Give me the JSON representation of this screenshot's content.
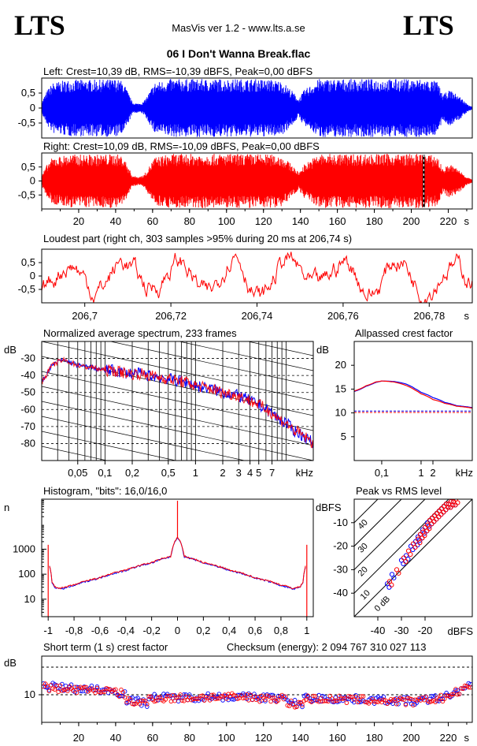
{
  "header": {
    "logo_left": "LTS",
    "logo_right": "LTS",
    "app_title": "MasVis ver 1.2 - www.lts.a.se",
    "file_title": "06 I Don't Wanna Break.flac"
  },
  "chart_data": [
    {
      "id": "left-waveform",
      "type": "area",
      "title": "Left: Crest=10,39 dB, RMS=-10,39 dBFS, Peak=0,00 dBFS",
      "yticks": [
        "0,5",
        "0",
        "-0,5"
      ],
      "ylim": [
        -1,
        1
      ],
      "xlim": [
        0,
        233
      ],
      "color": "#0000ff",
      "envelope_times_s": [
        0,
        3,
        6,
        15,
        24,
        31,
        40,
        44,
        48,
        49,
        52,
        55,
        58,
        61,
        70,
        85,
        100,
        115,
        125,
        130,
        136,
        139,
        142,
        150,
        170,
        190,
        205,
        214,
        217,
        221,
        226,
        230,
        233
      ],
      "envelope_peak": [
        0.2,
        0.6,
        0.85,
        0.95,
        0.95,
        0.95,
        0.97,
        0.9,
        0.35,
        0.2,
        0.15,
        0.2,
        0.5,
        0.85,
        0.97,
        0.97,
        0.97,
        0.97,
        0.95,
        0.9,
        0.55,
        0.3,
        0.6,
        0.97,
        0.97,
        0.97,
        0.97,
        0.9,
        0.45,
        0.6,
        0.4,
        0.15,
        0.05
      ]
    },
    {
      "id": "right-waveform",
      "type": "area",
      "title": "Right: Crest=10,09 dB, RMS=-10,09 dBFS, Peak=0,00 dBFS",
      "yticks": [
        "0,5",
        "0",
        "-0,5"
      ],
      "ylim": [
        -1,
        1
      ],
      "xlim": [
        0,
        233
      ],
      "color": "#ff0000",
      "marker_s": 206.74,
      "x_unit": "s",
      "xticks": [
        20,
        40,
        60,
        80,
        100,
        120,
        140,
        160,
        180,
        200,
        220
      ],
      "envelope_times_s": [
        0,
        3,
        6,
        15,
        24,
        31,
        40,
        44,
        48,
        49,
        52,
        55,
        58,
        61,
        70,
        85,
        100,
        115,
        125,
        130,
        136,
        139,
        142,
        150,
        170,
        190,
        205,
        214,
        217,
        221,
        226,
        230,
        233
      ],
      "envelope_peak": [
        0.2,
        0.6,
        0.85,
        0.95,
        0.95,
        0.95,
        0.97,
        0.9,
        0.35,
        0.2,
        0.15,
        0.2,
        0.5,
        0.85,
        0.97,
        0.97,
        0.97,
        0.97,
        0.95,
        0.9,
        0.55,
        0.3,
        0.6,
        0.97,
        0.97,
        0.97,
        0.97,
        0.9,
        0.45,
        0.6,
        0.4,
        0.15,
        0.05
      ]
    },
    {
      "id": "loudest-part",
      "type": "line",
      "title": "Loudest part (right ch, 303 samples >95% during 20 ms at 206,74 s)",
      "yticks": [
        "0,5",
        "0",
        "-0,5"
      ],
      "ylim": [
        -1,
        1
      ],
      "xlim": [
        206.69,
        206.79
      ],
      "xticks": [
        206.7,
        206.72,
        206.74,
        206.76,
        206.78
      ],
      "xtick_labels": [
        "206,7",
        "206,72",
        "206,74",
        "206,76",
        "206,78"
      ],
      "x_unit": "s",
      "color": "#ff0000"
    },
    {
      "id": "spectrum",
      "type": "line",
      "title": "Normalized average spectrum, 233 frames",
      "ylabel": "dB",
      "ylim": [
        -90,
        -20
      ],
      "yticks": [
        -30,
        -40,
        -50,
        -60,
        -70,
        -80
      ],
      "xlim": [
        0.02,
        20
      ],
      "xticks": [
        0.05,
        0.1,
        0.2,
        0.5,
        1,
        2,
        3,
        4,
        5,
        7
      ],
      "xtick_labels": [
        "0,05",
        "0,1",
        "0,2",
        "0,5",
        "1",
        "2",
        "3",
        "4",
        "5",
        "7"
      ],
      "x_unit": "kHz",
      "series": [
        {
          "color": "#0000ff",
          "x": [
            0.02,
            0.025,
            0.03,
            0.035,
            0.04,
            0.045,
            0.05,
            0.06,
            0.07,
            0.08,
            0.1,
            0.12,
            0.15,
            0.2,
            0.25,
            0.3,
            0.4,
            0.5,
            0.6,
            0.8,
            1,
            1.5,
            2,
            2.5,
            3,
            4,
            5,
            6,
            7,
            8,
            10,
            12,
            15,
            20
          ],
          "y": [
            -44,
            -35,
            -32,
            -31,
            -32,
            -33,
            -34,
            -35,
            -35,
            -36,
            -37,
            -37,
            -38,
            -39,
            -39,
            -40,
            -41,
            -42,
            -43,
            -44,
            -46,
            -48,
            -50,
            -51,
            -52,
            -55,
            -57,
            -60,
            -62,
            -65,
            -68,
            -72,
            -75,
            -80
          ]
        },
        {
          "color": "#ff0000",
          "x": [
            0.02,
            0.025,
            0.03,
            0.035,
            0.04,
            0.045,
            0.05,
            0.06,
            0.07,
            0.08,
            0.1,
            0.12,
            0.15,
            0.2,
            0.25,
            0.3,
            0.4,
            0.5,
            0.6,
            0.8,
            1,
            1.5,
            2,
            2.5,
            3,
            4,
            5,
            6,
            7,
            8,
            10,
            12,
            15,
            20
          ],
          "y": [
            -44,
            -35,
            -32,
            -31,
            -32,
            -33,
            -34,
            -35,
            -35,
            -36,
            -37,
            -37,
            -38,
            -39,
            -39,
            -40,
            -41,
            -42,
            -43,
            -44,
            -46,
            -48,
            -50,
            -51,
            -52,
            -55,
            -57,
            -60,
            -62,
            -65,
            -68,
            -72,
            -75,
            -80
          ]
        }
      ]
    },
    {
      "id": "allpassed-crest",
      "type": "line",
      "title": "Allpassed crest factor",
      "ylabel": "dB",
      "ylim": [
        0,
        25
      ],
      "yticks": [
        20,
        15,
        10,
        5
      ],
      "xlim": [
        0.02,
        20
      ],
      "xticks": [
        0.1,
        1,
        2
      ],
      "xtick_labels": [
        "0,1",
        "1",
        "2"
      ],
      "x_unit": "kHz",
      "reference_db": [
        10.39,
        10.09
      ],
      "series": [
        {
          "color": "#0000ff",
          "x": [
            0.02,
            0.04,
            0.07,
            0.1,
            0.2,
            0.4,
            0.7,
            1,
            2,
            4,
            8,
            20
          ],
          "y": [
            14.5,
            15.6,
            16.4,
            16.7,
            16.6,
            16.1,
            15.1,
            14.3,
            13.2,
            12.2,
            11.5,
            11.1
          ]
        },
        {
          "color": "#ff0000",
          "x": [
            0.02,
            0.04,
            0.07,
            0.1,
            0.2,
            0.4,
            0.7,
            1,
            2,
            4,
            8,
            20
          ],
          "y": [
            14.6,
            15.7,
            16.5,
            16.7,
            16.5,
            15.8,
            14.8,
            14.0,
            12.8,
            12.0,
            11.4,
            11.0
          ]
        }
      ]
    },
    {
      "id": "histogram",
      "type": "line",
      "title": "Histogram, \"bits\": 16,0/16,0",
      "ylabel": "n",
      "yscale": "log",
      "ylim": [
        2,
        100000
      ],
      "yticks": [
        1000,
        100,
        10
      ],
      "xlim": [
        -1.05,
        1.05
      ],
      "xticks": [
        -1,
        -0.8,
        -0.6,
        -0.4,
        -0.2,
        0,
        0.2,
        0.4,
        0.6,
        0.8,
        1
      ],
      "xtick_labels": [
        "-1",
        "-0,8",
        "-0,6",
        "-0,4",
        "-0,2",
        "0",
        "0,2",
        "0,4",
        "0,6",
        "0,8",
        "1"
      ],
      "series": [
        {
          "color": "#0000ff",
          "x": [
            -1,
            -0.99,
            -0.97,
            -0.95,
            -0.9,
            -0.8,
            -0.6,
            -0.4,
            -0.2,
            -0.05,
            0,
            0.05,
            0.2,
            0.4,
            0.6,
            0.8,
            0.9,
            0.95,
            0.97,
            0.99,
            1
          ],
          "y": [
            1500,
            200,
            45,
            30,
            25,
            35,
            70,
            140,
            280,
            500,
            3000,
            500,
            280,
            140,
            70,
            35,
            25,
            30,
            45,
            200,
            1500
          ]
        },
        {
          "color": "#ff0000",
          "x": [
            -1,
            -0.99,
            -0.97,
            -0.95,
            -0.9,
            -0.8,
            -0.6,
            -0.4,
            -0.2,
            -0.05,
            0,
            0.05,
            0.2,
            0.4,
            0.6,
            0.8,
            0.9,
            0.95,
            0.97,
            0.99,
            1
          ],
          "y": [
            1500,
            210,
            48,
            32,
            27,
            37,
            72,
            145,
            290,
            520,
            3000,
            520,
            290,
            145,
            72,
            37,
            27,
            32,
            48,
            210,
            1500
          ]
        }
      ]
    },
    {
      "id": "peak-vs-rms",
      "type": "scatter",
      "title": "Peak vs RMS level",
      "ylabel": "dBFS",
      "xlabel": "dBFS",
      "xlim": [
        -50,
        0
      ],
      "ylim": [
        -50,
        0
      ],
      "xticks": [
        -40,
        -30,
        -20
      ],
      "yticks": [
        -10,
        -20,
        -30,
        -40
      ],
      "diagonal_labels": [
        "40",
        "30",
        "20",
        "10",
        "0 dB"
      ],
      "diagonal_offsets_db": [
        40,
        30,
        20,
        10,
        0
      ],
      "series": [
        {
          "color": "#0000ff",
          "x": [
            -36,
            -34,
            -30,
            -28,
            -26,
            -24,
            -23,
            -22,
            -21,
            -20,
            -19,
            -18,
            -17,
            -16,
            -15,
            -14,
            -13,
            -12,
            -11,
            -10,
            -9,
            -8
          ],
          "y": [
            -36,
            -32,
            -26,
            -24,
            -20,
            -18,
            -16,
            -15,
            -13,
            -12,
            -10,
            -9,
            -8,
            -7,
            -6,
            -5,
            -4,
            -3,
            -2,
            -2,
            -1,
            -1
          ]
        },
        {
          "color": "#ff0000",
          "x": [
            -35,
            -32,
            -29,
            -27,
            -25,
            -23,
            -22,
            -21,
            -20,
            -19,
            -18,
            -17,
            -16,
            -15,
            -14,
            -13,
            -12,
            -11,
            -10,
            -9,
            -8,
            -7
          ],
          "y": [
            -35,
            -30,
            -25,
            -22,
            -19,
            -17,
            -15,
            -14,
            -12,
            -11,
            -9,
            -8,
            -7,
            -6,
            -5,
            -4,
            -3,
            -2,
            -2,
            -1,
            -1,
            0
          ]
        }
      ]
    },
    {
      "id": "short-term-crest",
      "type": "scatter",
      "title": "Short term (1 s) crest factor",
      "ylabel": "dB",
      "ylim": [
        5,
        17
      ],
      "yticks": [
        10
      ],
      "reference_lines_db": [
        10,
        15
      ],
      "xlim": [
        0,
        233
      ],
      "xticks": [
        20,
        40,
        60,
        80,
        100,
        120,
        140,
        160,
        180,
        200,
        220
      ],
      "x_unit": "s",
      "series": [
        {
          "color": "#0000ff",
          "name": "",
          "base_db": [
            11.6,
            11.2,
            11.0,
            10.2,
            9.5,
            9.5,
            9.7,
            9.6,
            9.5,
            9.4,
            9.3,
            9.2,
            9.0,
            8.8,
            9.5,
            11.8
          ]
        },
        {
          "color": "#ff0000",
          "name": "",
          "base_db": [
            11.4,
            11.0,
            10.9,
            10.0,
            9.4,
            9.4,
            9.6,
            9.5,
            9.4,
            9.3,
            9.2,
            9.1,
            8.9,
            8.7,
            9.4,
            11.6
          ]
        }
      ]
    }
  ],
  "checksum": "Checksum (energy):  2 094 767 310 027 113"
}
